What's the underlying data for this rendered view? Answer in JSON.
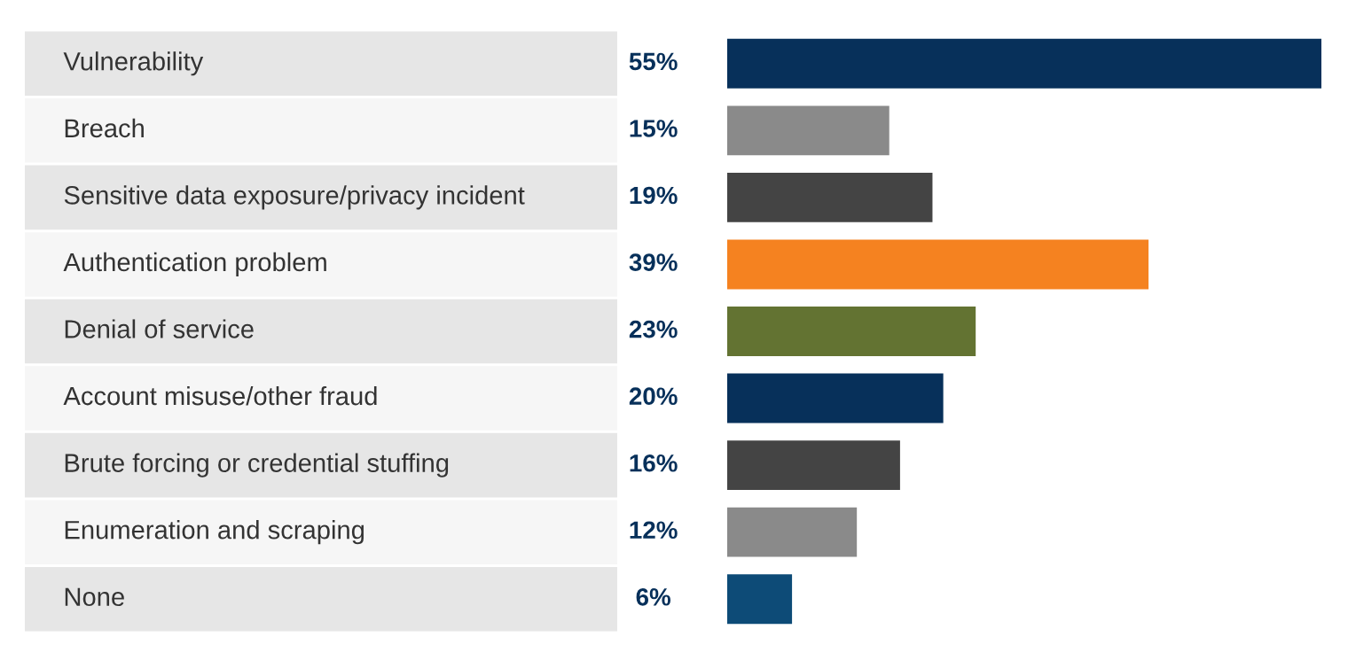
{
  "chart_data": {
    "type": "bar",
    "orientation": "horizontal",
    "categories": [
      "Vulnerability",
      "Breach",
      "Sensitive data exposure/privacy incident",
      "Authentication problem",
      "Denial of service",
      "Account misuse/other fraud",
      "Brute forcing or credential stuffing",
      "Enumeration and scraping",
      "None"
    ],
    "values": [
      55,
      15,
      19,
      39,
      23,
      20,
      16,
      12,
      6
    ],
    "colors": [
      "#07305a",
      "#8a8a8a",
      "#444444",
      "#f58220",
      "#637332",
      "#07305a",
      "#444444",
      "#8a8a8a",
      "#0d4b77"
    ],
    "value_labels": [
      "55%",
      "15%",
      "19%",
      "39%",
      "23%",
      "20%",
      "16%",
      "12%",
      "6%"
    ]
  }
}
